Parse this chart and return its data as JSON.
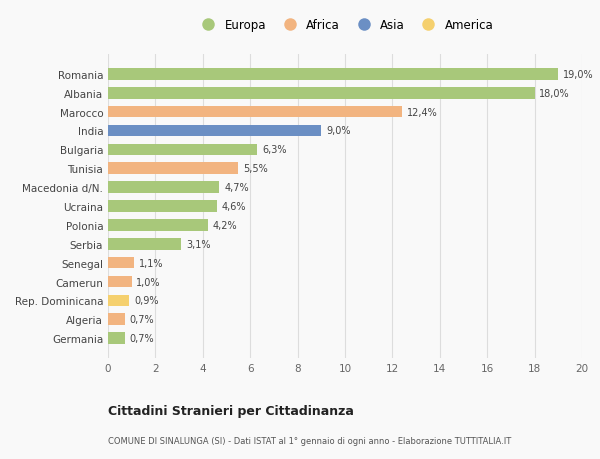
{
  "countries": [
    "Romania",
    "Albania",
    "Marocco",
    "India",
    "Bulgaria",
    "Tunisia",
    "Macedonia d/N.",
    "Ucraina",
    "Polonia",
    "Serbia",
    "Senegal",
    "Camerun",
    "Rep. Dominicana",
    "Algeria",
    "Germania"
  ],
  "values": [
    19.0,
    18.0,
    12.4,
    9.0,
    6.3,
    5.5,
    4.7,
    4.6,
    4.2,
    3.1,
    1.1,
    1.0,
    0.9,
    0.7,
    0.7
  ],
  "labels": [
    "19,0%",
    "18,0%",
    "12,4%",
    "9,0%",
    "6,3%",
    "5,5%",
    "4,7%",
    "4,6%",
    "4,2%",
    "3,1%",
    "1,1%",
    "1,0%",
    "0,9%",
    "0,7%",
    "0,7%"
  ],
  "continents": [
    "Europa",
    "Europa",
    "Africa",
    "Asia",
    "Europa",
    "Africa",
    "Europa",
    "Europa",
    "Europa",
    "Europa",
    "Africa",
    "Africa",
    "America",
    "Africa",
    "Europa"
  ],
  "colors": {
    "Europa": "#a8c87a",
    "Africa": "#f2b480",
    "Asia": "#6b8fc4",
    "America": "#f5d06e"
  },
  "legend_order": [
    "Europa",
    "Africa",
    "Asia",
    "America"
  ],
  "title": "Cittadini Stranieri per Cittadinanza",
  "subtitle": "COMUNE DI SINALUNGA (SI) - Dati ISTAT al 1° gennaio di ogni anno - Elaborazione TUTTITALIA.IT",
  "xlim": [
    0,
    20
  ],
  "xticks": [
    0,
    2,
    4,
    6,
    8,
    10,
    12,
    14,
    16,
    18,
    20
  ],
  "background_color": "#f9f9f9",
  "grid_color": "#dddddd"
}
